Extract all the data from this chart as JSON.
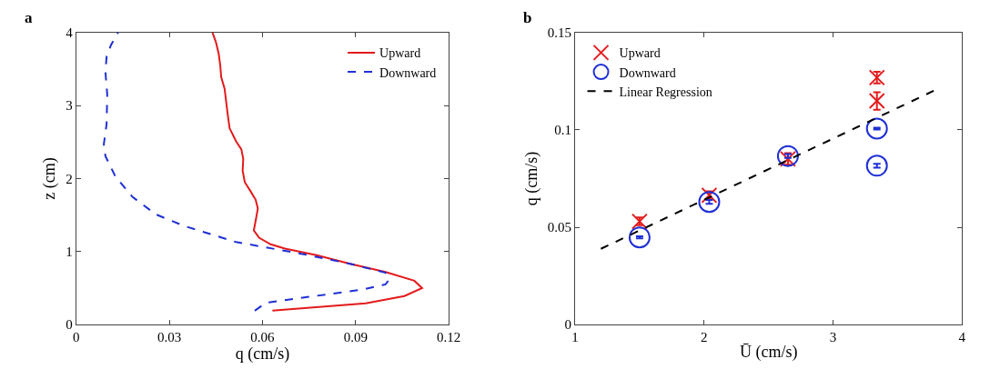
{
  "chart_data": [
    {
      "type": "line",
      "annotations": [
        "a"
      ],
      "xlabel": "q (cm/s)",
      "ylabel": "z (cm)",
      "xlim": [
        0,
        0.12
      ],
      "xticks": [
        0,
        0.03,
        0.06,
        0.09,
        0.12
      ],
      "ylim": [
        0,
        4
      ],
      "yticks": [
        0,
        1,
        2,
        3,
        4
      ],
      "legend": "top right",
      "marker": "none",
      "series": [
        {
          "name": "Upward",
          "color": "#e31a1c",
          "line_style": "solid",
          "x": [
            0.0632,
            0.0932,
            0.1057,
            0.1114,
            0.1089,
            0.0996,
            0.0885,
            0.0774,
            0.0672,
            0.0626,
            0.0589,
            0.0572,
            0.058,
            0.0585,
            0.0578,
            0.0561,
            0.0543,
            0.0536,
            0.0538,
            0.0532,
            0.0515,
            0.0494,
            0.0487,
            0.0478,
            0.0467,
            0.0464,
            0.0459,
            0.045,
            0.0439
          ],
          "values": [
            0.19,
            0.29,
            0.39,
            0.5,
            0.6,
            0.72,
            0.83,
            0.95,
            1.04,
            1.1,
            1.19,
            1.29,
            1.47,
            1.59,
            1.71,
            1.83,
            1.95,
            2.11,
            2.27,
            2.4,
            2.51,
            2.69,
            2.91,
            3.23,
            3.39,
            3.55,
            3.71,
            3.87,
            4.0
          ]
        },
        {
          "name": "Downward",
          "color": "#1f2fd6",
          "line_style": "dashed",
          "x": [
            0.0575,
            0.0612,
            0.07,
            0.0922,
            0.0996,
            0.1007,
            0.0996,
            0.0885,
            0.0737,
            0.0607,
            0.0515,
            0.0432,
            0.0348,
            0.0256,
            0.0181,
            0.0126,
            0.0094,
            0.0089,
            0.0098,
            0.01,
            0.0094,
            0.0098,
            0.0112,
            0.0135
          ],
          "values": [
            0.19,
            0.3,
            0.35,
            0.48,
            0.55,
            0.61,
            0.71,
            0.83,
            0.96,
            1.06,
            1.13,
            1.24,
            1.35,
            1.51,
            1.75,
            2.03,
            2.31,
            2.47,
            2.75,
            3.15,
            3.47,
            3.67,
            3.83,
            4.0
          ]
        }
      ]
    },
    {
      "type": "scatter",
      "annotations": [
        "b"
      ],
      "xlabel": "Ū (cm/s)",
      "ylabel": "q (cm/s)",
      "xlim": [
        1,
        4
      ],
      "xticks": [
        1,
        2,
        3,
        4
      ],
      "ylim": [
        0,
        0.15
      ],
      "yticks": [
        0,
        0.05,
        0.1,
        0.15
      ],
      "legend": "top left",
      "series": [
        {
          "name": "Upward",
          "color": "#e31a1c",
          "marker": "cross",
          "x": [
            1.5,
            2.04,
            2.65,
            3.34,
            3.34
          ],
          "values": [
            0.053,
            0.0664,
            0.0851,
            0.1269,
            0.1149
          ],
          "errors": [
            0.002,
            0.002,
            0.003,
            0.003,
            0.0045
          ]
        },
        {
          "name": "Downward",
          "color": "#1f2fd6",
          "marker": "circle",
          "x": [
            1.5,
            2.04,
            2.65,
            3.34,
            3.34
          ],
          "values": [
            0.0448,
            0.063,
            0.0866,
            0.1007,
            0.0816
          ],
          "errors": [
            0.0005,
            0.001,
            0.001,
            0.0005,
            0.001
          ]
        },
        {
          "name": "Linear Regression",
          "type": "line",
          "color": "#000000",
          "line_style": "dashed",
          "marker": "none",
          "x": [
            1.2,
            3.78
          ],
          "values": [
            0.0389,
            0.1201
          ]
        }
      ]
    }
  ]
}
